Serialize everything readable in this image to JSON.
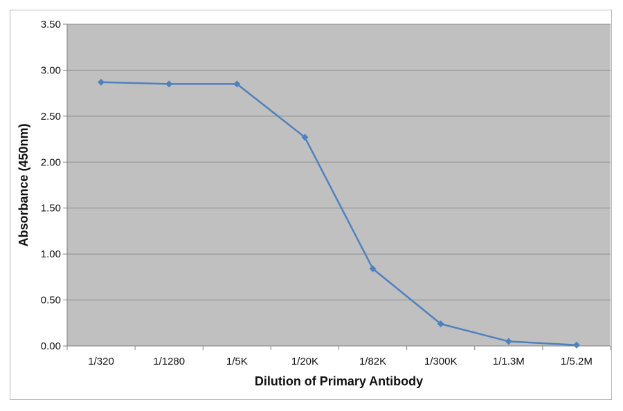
{
  "chart_data": {
    "type": "line",
    "xlabel": "Dilution of Primary Antibody",
    "ylabel": "Absorbance (450nm)",
    "categories": [
      "1/320",
      "1/1280",
      "1/5K",
      "1/20K",
      "1/82K",
      "1/300K",
      "1/1.3M",
      "1/5.2M"
    ],
    "series": [
      {
        "values": [
          2.87,
          2.85,
          2.85,
          2.27,
          0.84,
          0.24,
          0.05,
          0.01
        ]
      }
    ],
    "ylim": [
      0,
      3.5
    ],
    "yticks": [
      "0.00",
      "0.50",
      "1.00",
      "1.50",
      "2.00",
      "2.50",
      "3.00",
      "3.50"
    ],
    "grid": true,
    "colors": {
      "line": "#4f81bd",
      "plot_background": "#c0c0c0",
      "gridline": "#8c8c8c"
    }
  }
}
